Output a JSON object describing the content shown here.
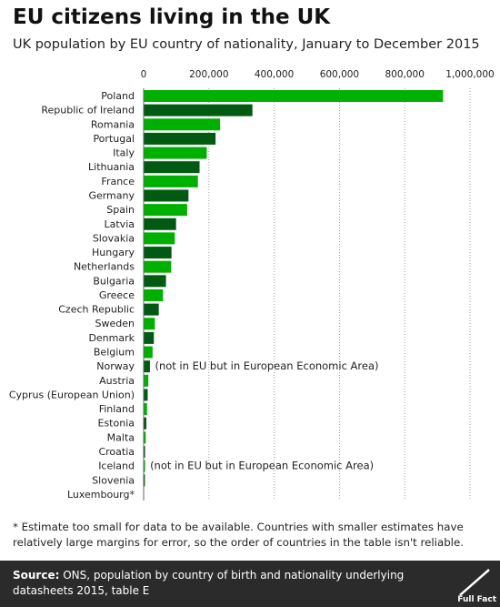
{
  "chart_data": {
    "type": "bar",
    "orientation": "horizontal",
    "title": "EU citizens living in the UK",
    "subtitle": "UK population by EU country of nationality, January to December 2015",
    "xlim": [
      0,
      1000000
    ],
    "x_ticks": [
      "0",
      "200,000",
      "400,000",
      "600,000",
      "800,000",
      "1,000,000"
    ],
    "x_tick_values": [
      0,
      200000,
      400000,
      600000,
      800000,
      1000000
    ],
    "grid": "vertical dotted",
    "colors": [
      "#00b000",
      "#005a12"
    ],
    "categories": [
      "Poland",
      "Republic of Ireland",
      "Romania",
      "Portugal",
      "Italy",
      "Lithuania",
      "France",
      "Germany",
      "Spain",
      "Latvia",
      "Slovakia",
      "Hungary",
      "Netherlands",
      "Bulgaria",
      "Greece",
      "Czech Republic",
      "Sweden",
      "Denmark",
      "Belgium",
      "Norway",
      "Austria",
      "Cyprus (European Union)",
      "Finland",
      "Estonia",
      "Malta",
      "Croatia",
      "Iceland",
      "Slovenia",
      "Luxembourg*"
    ],
    "values": [
      916000,
      332000,
      233000,
      219000,
      192000,
      170000,
      165000,
      136000,
      132000,
      98000,
      94000,
      84000,
      83000,
      67000,
      58000,
      45000,
      33000,
      30000,
      26000,
      18000,
      13000,
      11000,
      9000,
      7000,
      5000,
      3000,
      3000,
      2500,
      0
    ],
    "annotations": [
      {
        "category": "Norway",
        "text": "(not in EU but in European Economic Area)"
      },
      {
        "category": "Iceland",
        "text": "(not in EU but in European Economic Area)"
      }
    ]
  },
  "footnote": "* Estimate too small for data to be available. Countries with smaller estimates have relatively large margins for error, so the order of countries in the table isn't reliable.",
  "footer": {
    "source_label": "Source:",
    "source_text": " ONS, population by country of birth and nationality underlying datasheets 2015, table E",
    "logo_text": "Full Fact"
  }
}
